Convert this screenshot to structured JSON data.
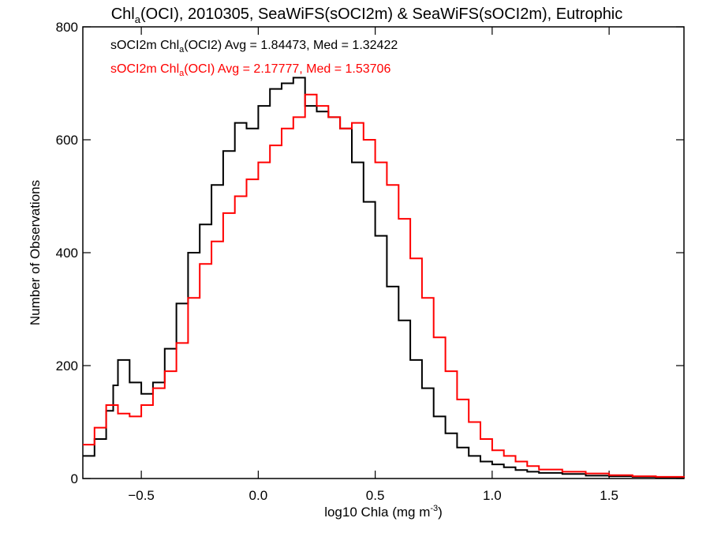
{
  "chart_data": {
    "type": "line",
    "title_parts": [
      "Chl",
      "a",
      "(OCI), 2010305, SeaWiFS(sOCI2m) & SeaWiFS(sOCI2m), Eutrophic"
    ],
    "xlabel_parts": [
      "log10 Chla (mg m",
      "-3",
      ")"
    ],
    "ylabel": "Number of Observations",
    "xlim": [
      -0.75,
      1.82
    ],
    "ylim": [
      0,
      800
    ],
    "xticks": [
      -0.5,
      0.0,
      0.5,
      1.0,
      1.5
    ],
    "xtick_labels": [
      "−0.5",
      "0.0",
      "0.5",
      "1.0",
      "1.5"
    ],
    "yticks": [
      0,
      200,
      400,
      600,
      800
    ],
    "ytick_labels": [
      "0",
      "200",
      "400",
      "600",
      "800"
    ],
    "step": "histogram",
    "grid": false,
    "legend_position": "top-left",
    "series": [
      {
        "color": "#000000",
        "label_parts": [
          "sOCI2m Chl",
          "a",
          "(OCI2) Avg = 1.84473, Med = 1.32422"
        ],
        "x": [
          -0.75,
          -0.7,
          -0.65,
          -0.62,
          -0.6,
          -0.55,
          -0.5,
          -0.45,
          -0.4,
          -0.35,
          -0.3,
          -0.25,
          -0.2,
          -0.15,
          -0.1,
          -0.05,
          0.0,
          0.05,
          0.1,
          0.15,
          0.2,
          0.25,
          0.3,
          0.35,
          0.4,
          0.45,
          0.5,
          0.55,
          0.6,
          0.65,
          0.7,
          0.75,
          0.8,
          0.85,
          0.9,
          0.95,
          1.0,
          1.05,
          1.1,
          1.15,
          1.2,
          1.3,
          1.4,
          1.5,
          1.6,
          1.7,
          1.82
        ],
        "y": [
          40,
          70,
          120,
          165,
          210,
          170,
          150,
          170,
          230,
          310,
          400,
          450,
          520,
          580,
          630,
          620,
          660,
          690,
          700,
          710,
          660,
          650,
          640,
          620,
          560,
          490,
          430,
          340,
          280,
          210,
          160,
          110,
          80,
          55,
          40,
          30,
          25,
          20,
          15,
          12,
          10,
          8,
          5,
          4,
          3,
          2,
          1
        ]
      },
      {
        "color": "#ff0000",
        "label_parts": [
          "sOCI2m Chl",
          "a",
          "(OCI) Avg = 2.17777, Med = 1.53706"
        ],
        "x": [
          -0.75,
          -0.7,
          -0.65,
          -0.6,
          -0.55,
          -0.5,
          -0.45,
          -0.4,
          -0.35,
          -0.3,
          -0.25,
          -0.2,
          -0.15,
          -0.1,
          -0.05,
          0.0,
          0.05,
          0.1,
          0.15,
          0.2,
          0.25,
          0.3,
          0.35,
          0.4,
          0.45,
          0.5,
          0.55,
          0.6,
          0.65,
          0.7,
          0.75,
          0.8,
          0.85,
          0.9,
          0.95,
          1.0,
          1.05,
          1.1,
          1.15,
          1.2,
          1.3,
          1.4,
          1.5,
          1.6,
          1.7,
          1.82
        ],
        "y": [
          60,
          90,
          130,
          115,
          110,
          130,
          160,
          190,
          240,
          320,
          380,
          420,
          470,
          500,
          530,
          560,
          590,
          620,
          640,
          680,
          660,
          640,
          620,
          630,
          600,
          560,
          520,
          460,
          390,
          320,
          250,
          190,
          140,
          100,
          70,
          50,
          40,
          30,
          22,
          16,
          12,
          9,
          6,
          4,
          3,
          2
        ]
      }
    ]
  }
}
